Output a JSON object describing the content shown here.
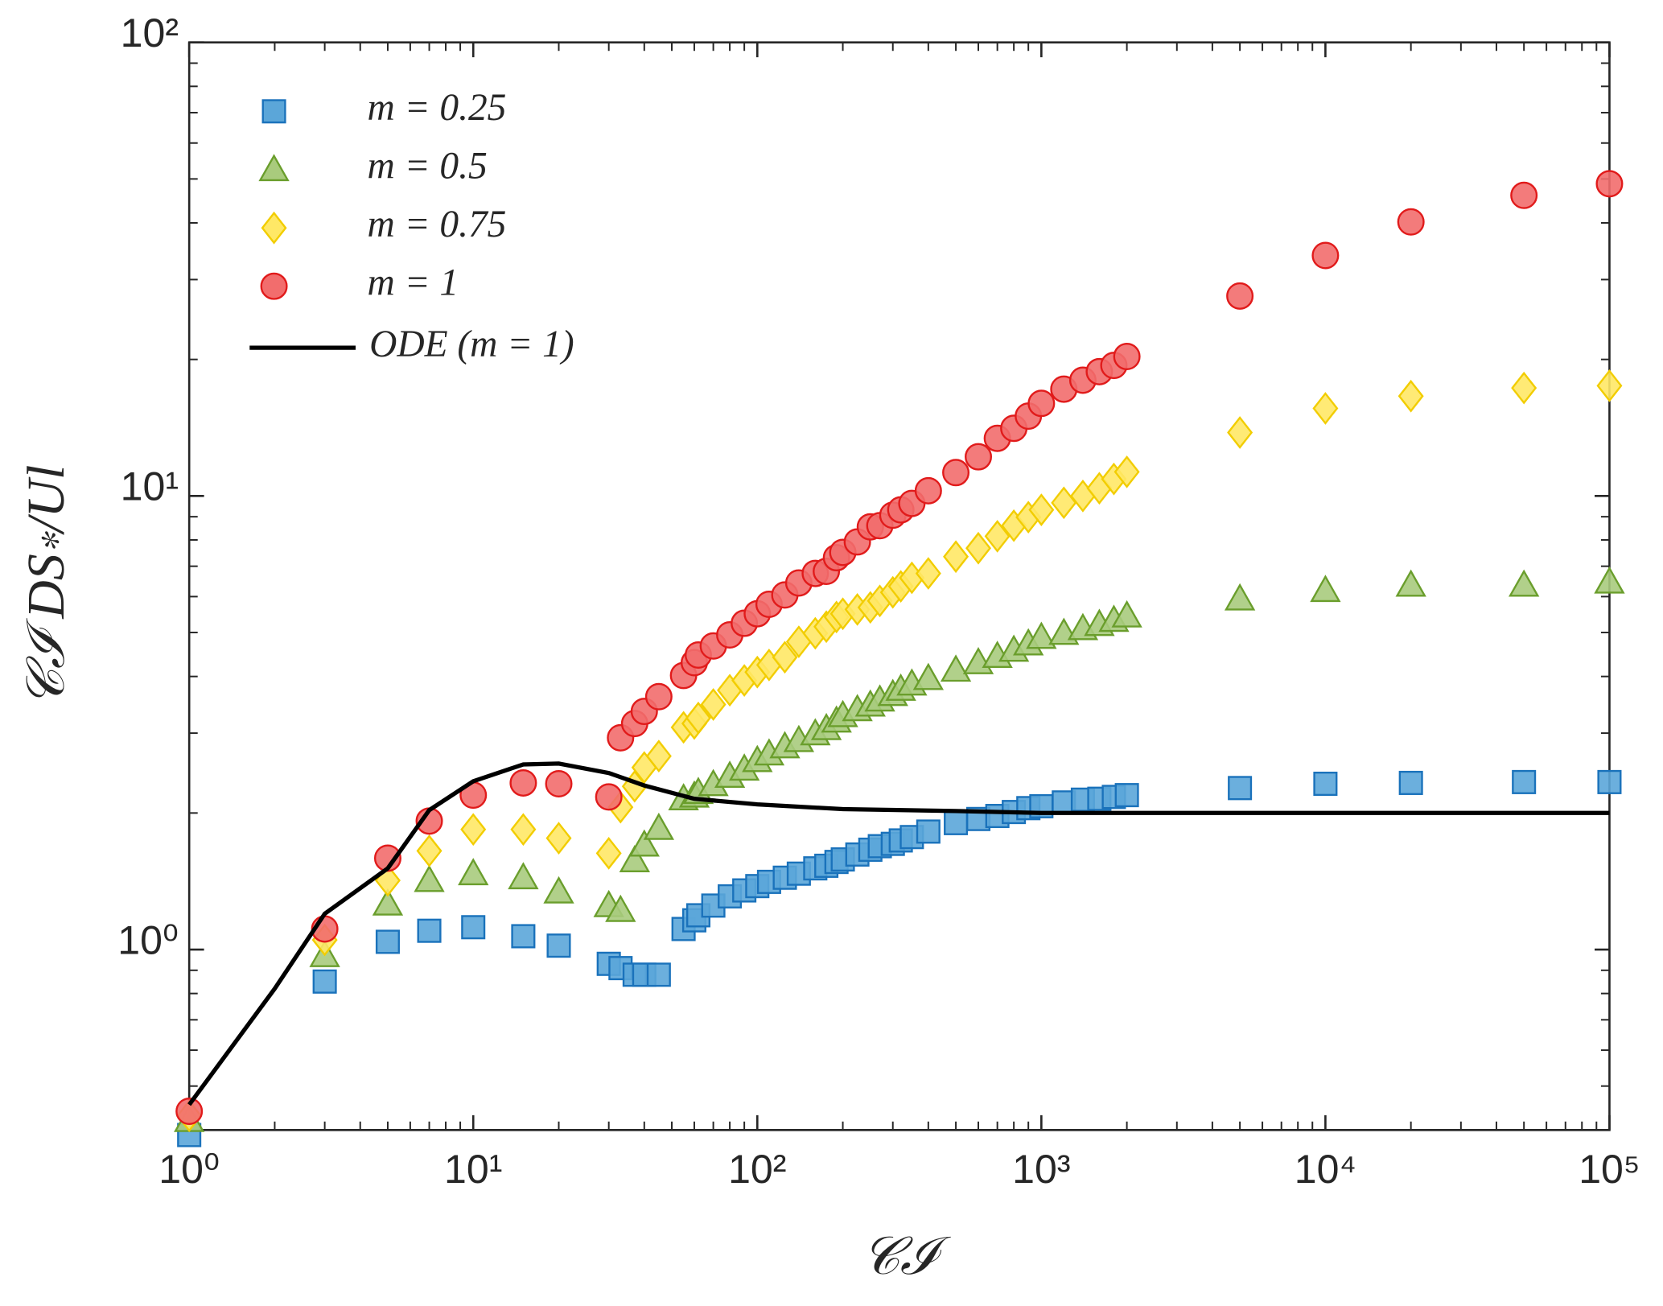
{
  "chart_data": {
    "type": "scatter",
    "xlabel": "𝒞ℐ",
    "ylabel": "𝒞ℐ DS∗/Ul",
    "xlog": true,
    "ylog": true,
    "xlim": [
      1,
      100000
    ],
    "ylim": [
      0.4,
      100
    ],
    "xticks": [
      {
        "value": 1,
        "label": "10⁰"
      },
      {
        "value": 10,
        "label": "10¹"
      },
      {
        "value": 100,
        "label": "10²"
      },
      {
        "value": 1000,
        "label": "10³"
      },
      {
        "value": 10000,
        "label": "10⁴"
      },
      {
        "value": 100000,
        "label": "10⁵"
      }
    ],
    "yticks": [
      {
        "value": 1,
        "label": "10⁰"
      },
      {
        "value": 10,
        "label": "10¹"
      },
      {
        "value": 100,
        "label": "10²"
      }
    ],
    "legend": "upper left",
    "series": [
      {
        "name": "m = 0.25",
        "marker": "square",
        "color": "#1a72bb",
        "fill": "#5ba6d9",
        "x": [
          1,
          3,
          5,
          7,
          10,
          15,
          20,
          30,
          33,
          37,
          40,
          45,
          55,
          60,
          62,
          70,
          80,
          90,
          100,
          110,
          125,
          140,
          160,
          175,
          190,
          200,
          225,
          250,
          270,
          300,
          320,
          350,
          400,
          500,
          600,
          700,
          800,
          900,
          1000,
          1200,
          1400,
          1600,
          1800,
          2000,
          5000,
          10000,
          20000,
          50000,
          100000
        ],
        "values": [
          0.39,
          0.85,
          1.04,
          1.1,
          1.12,
          1.07,
          1.02,
          0.93,
          0.91,
          0.88,
          0.88,
          0.88,
          1.11,
          1.16,
          1.19,
          1.25,
          1.31,
          1.35,
          1.38,
          1.41,
          1.44,
          1.47,
          1.51,
          1.53,
          1.56,
          1.58,
          1.62,
          1.66,
          1.69,
          1.71,
          1.74,
          1.77,
          1.82,
          1.9,
          1.94,
          1.97,
          2.01,
          2.05,
          2.07,
          2.11,
          2.14,
          2.15,
          2.17,
          2.19,
          2.27,
          2.32,
          2.33,
          2.34,
          2.34
        ]
      },
      {
        "name": "m = 0.5",
        "marker": "triangle",
        "color": "#6a9e2c",
        "fill": "#a9cb7d",
        "x": [
          1,
          3,
          5,
          7,
          10,
          15,
          20,
          30,
          33,
          37,
          40,
          45,
          55,
          60,
          62,
          70,
          80,
          90,
          100,
          110,
          125,
          140,
          160,
          175,
          190,
          200,
          225,
          250,
          270,
          300,
          320,
          350,
          400,
          500,
          600,
          700,
          800,
          900,
          1000,
          1200,
          1400,
          1600,
          1800,
          2000,
          5000,
          10000,
          20000,
          50000,
          100000
        ],
        "values": [
          0.42,
          0.97,
          1.26,
          1.42,
          1.47,
          1.44,
          1.34,
          1.25,
          1.22,
          1.57,
          1.7,
          1.85,
          2.15,
          2.18,
          2.22,
          2.31,
          2.41,
          2.5,
          2.61,
          2.7,
          2.8,
          2.89,
          2.99,
          3.07,
          3.19,
          3.28,
          3.38,
          3.46,
          3.55,
          3.65,
          3.75,
          3.85,
          3.96,
          4.13,
          4.29,
          4.43,
          4.57,
          4.72,
          4.88,
          4.98,
          5.1,
          5.21,
          5.32,
          5.44,
          5.93,
          6.19,
          6.36,
          6.36,
          6.46
        ]
      },
      {
        "name": "m = 0.75",
        "marker": "diamond",
        "color": "#f2cd00",
        "fill": "#ffe866",
        "x": [
          1,
          3,
          5,
          7,
          10,
          15,
          20,
          30,
          33,
          37,
          40,
          45,
          55,
          60,
          62,
          70,
          80,
          90,
          100,
          110,
          125,
          140,
          160,
          175,
          190,
          200,
          225,
          250,
          270,
          300,
          320,
          350,
          400,
          500,
          600,
          700,
          800,
          900,
          1000,
          1200,
          1400,
          1600,
          1800,
          2000,
          5000,
          10000,
          20000,
          50000,
          100000
        ],
        "values": [
          0.43,
          1.05,
          1.42,
          1.65,
          1.84,
          1.84,
          1.76,
          1.63,
          2.06,
          2.29,
          2.52,
          2.67,
          3.09,
          3.15,
          3.24,
          3.47,
          3.73,
          3.92,
          4.09,
          4.24,
          4.41,
          4.77,
          4.98,
          5.15,
          5.41,
          5.5,
          5.62,
          5.68,
          5.87,
          6.13,
          6.32,
          6.6,
          6.75,
          7.35,
          7.67,
          8.15,
          8.6,
          8.98,
          9.32,
          9.66,
          10.0,
          10.4,
          10.9,
          11.3,
          13.8,
          15.6,
          16.6,
          17.3,
          17.5
        ]
      },
      {
        "name": "m = 1",
        "marker": "circle",
        "color": "#e11b1b",
        "fill": "#f26d6d",
        "x": [
          1,
          3,
          5,
          7,
          10,
          15,
          20,
          30,
          33,
          37,
          40,
          45,
          55,
          60,
          62,
          70,
          80,
          90,
          100,
          110,
          125,
          140,
          160,
          175,
          190,
          200,
          225,
          250,
          270,
          300,
          320,
          350,
          400,
          500,
          600,
          700,
          800,
          900,
          1000,
          1200,
          1400,
          1600,
          1800,
          2000,
          5000,
          10000,
          20000,
          50000,
          100000
        ],
        "values": [
          0.44,
          1.11,
          1.59,
          1.92,
          2.19,
          2.33,
          2.32,
          2.17,
          2.93,
          3.15,
          3.35,
          3.61,
          4.02,
          4.29,
          4.46,
          4.67,
          4.94,
          5.24,
          5.5,
          5.77,
          6.05,
          6.43,
          6.75,
          6.82,
          7.31,
          7.51,
          7.92,
          8.55,
          8.6,
          9.07,
          9.32,
          9.63,
          10.27,
          11.26,
          12.2,
          13.4,
          14.1,
          15.0,
          16.0,
          17.2,
          18.0,
          18.8,
          19.4,
          20.3,
          27.6,
          33.9,
          40.2,
          46.0,
          48.8
        ]
      },
      {
        "name": "ODE (m = 1)",
        "marker": "line",
        "color": "#000000",
        "x": [
          1,
          2,
          3,
          5,
          7,
          10,
          15,
          20,
          30,
          40,
          60,
          100,
          200,
          500,
          1000,
          10000,
          100000
        ],
        "values": [
          0.455,
          0.82,
          1.2,
          1.51,
          2.03,
          2.35,
          2.56,
          2.57,
          2.45,
          2.3,
          2.15,
          2.09,
          2.04,
          2.02,
          2.0,
          2.0,
          2.0
        ]
      }
    ]
  }
}
